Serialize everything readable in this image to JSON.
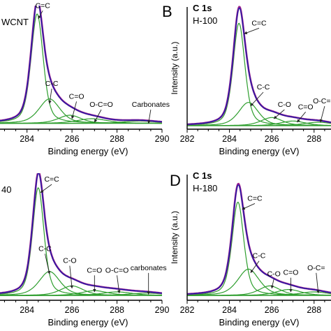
{
  "colors": {
    "fit": "#9b1f8e",
    "envelope": "#1a1aa8",
    "component": "#2e9e2e",
    "raw": "#d23b3b",
    "axis": "#000000",
    "arrow": "#222222"
  },
  "chart_data": [
    {
      "id": "A",
      "type": "line",
      "panel_letter": "",
      "header": "",
      "sample": "WCNT",
      "xlabel": "Binding energy (eV)",
      "ylabel": "",
      "xlim": [
        282.8,
        290
      ],
      "xticks": [
        284,
        286,
        288,
        290
      ],
      "ylim": [
        0,
        1.05
      ],
      "components": [
        {
          "label": "C=C",
          "center": 284.45,
          "height": 0.94,
          "width": 0.32,
          "arrow_from": [
            284.7,
            1.03
          ],
          "arrow_to": [
            284.5,
            0.95
          ]
        },
        {
          "label": "C-C",
          "center": 285.0,
          "height": 0.21,
          "width": 0.55,
          "arrow_from": [
            285.1,
            0.36
          ],
          "arrow_to": [
            285.0,
            0.22
          ]
        },
        {
          "label": "C=O",
          "center": 285.9,
          "height": 0.07,
          "width": 0.6,
          "arrow_from": [
            286.2,
            0.25
          ],
          "arrow_to": [
            286.0,
            0.09
          ]
        },
        {
          "label": "O-C=O",
          "center": 286.9,
          "height": 0.04,
          "width": 0.8,
          "arrow_from": [
            287.3,
            0.18
          ],
          "arrow_to": [
            287.0,
            0.06
          ]
        },
        {
          "label": "Carbonates",
          "center": 289.0,
          "height": 0.02,
          "width": 0.9,
          "arrow_from": [
            289.5,
            0.18
          ],
          "arrow_to": [
            289.4,
            0.05
          ]
        }
      ],
      "baseline": 0.05
    },
    {
      "id": "B",
      "type": "line",
      "panel_letter": "B",
      "header": "C 1s",
      "sample": "H-100",
      "xlabel": "Binding energy (eV)",
      "ylabel": "Intensity (a.u.)",
      "xlim": [
        282,
        288.8
      ],
      "xticks": [
        282,
        284,
        286,
        288
      ],
      "ylim": [
        0,
        1.05
      ],
      "components": [
        {
          "label": "C=C",
          "center": 284.45,
          "height": 0.88,
          "width": 0.33,
          "arrow_from": [
            285.4,
            0.88
          ],
          "arrow_to": [
            284.7,
            0.82
          ]
        },
        {
          "label": "C-C",
          "center": 284.9,
          "height": 0.2,
          "width": 0.55,
          "arrow_from": [
            285.6,
            0.33
          ],
          "arrow_to": [
            285.0,
            0.2
          ]
        },
        {
          "label": "C-O",
          "center": 286.0,
          "height": 0.07,
          "width": 0.6,
          "arrow_from": [
            286.6,
            0.18
          ],
          "arrow_to": [
            286.1,
            0.09
          ]
        },
        {
          "label": "C=O",
          "center": 287.0,
          "height": 0.04,
          "width": 0.7,
          "arrow_from": [
            287.6,
            0.16
          ],
          "arrow_to": [
            287.2,
            0.06
          ]
        },
        {
          "label": "O-C=O",
          "center": 288.2,
          "height": 0.03,
          "width": 0.8,
          "arrow_from": [
            288.5,
            0.21
          ],
          "arrow_to": [
            288.3,
            0.06
          ]
        }
      ],
      "baseline": 0.03
    },
    {
      "id": "C",
      "type": "line",
      "panel_letter": "",
      "header": "",
      "sample": "40",
      "xlabel": "Binding energy (eV)",
      "ylabel": "",
      "xlim": [
        282.8,
        290
      ],
      "xticks": [
        284,
        286,
        288,
        290
      ],
      "ylim": [
        0,
        1.05
      ],
      "components": [
        {
          "label": "C=C",
          "center": 284.5,
          "height": 0.9,
          "width": 0.3,
          "arrow_from": [
            285.1,
            0.98
          ],
          "arrow_to": [
            284.6,
            0.9
          ]
        },
        {
          "label": "C-C",
          "center": 285.0,
          "height": 0.2,
          "width": 0.55,
          "arrow_from": [
            284.8,
            0.4
          ],
          "arrow_to": [
            285.0,
            0.22
          ]
        },
        {
          "label": "C-O",
          "center": 286.0,
          "height": 0.08,
          "width": 0.6,
          "arrow_from": [
            285.9,
            0.3
          ],
          "arrow_to": [
            286.0,
            0.1
          ]
        },
        {
          "label": "C=O",
          "center": 287.0,
          "height": 0.04,
          "width": 0.7,
          "arrow_from": [
            287.0,
            0.22
          ],
          "arrow_to": [
            287.0,
            0.07
          ]
        },
        {
          "label": "O-C=O",
          "center": 288.0,
          "height": 0.03,
          "width": 0.8,
          "arrow_from": [
            288.0,
            0.22
          ],
          "arrow_to": [
            288.1,
            0.06
          ]
        },
        {
          "label": "carbonates",
          "center": 289.3,
          "height": 0.02,
          "width": 0.9,
          "arrow_from": [
            289.4,
            0.24
          ],
          "arrow_to": [
            289.4,
            0.05
          ]
        }
      ],
      "baseline": 0.04
    },
    {
      "id": "D",
      "type": "line",
      "panel_letter": "D",
      "header": "C 1s",
      "sample": "H-180",
      "xlabel": "Binding energy (eV)",
      "ylabel": "Intensity (a.u.)",
      "xlim": [
        282,
        288.8
      ],
      "xticks": [
        282,
        284,
        286,
        288
      ],
      "ylim": [
        0,
        1.05
      ],
      "components": [
        {
          "label": "C=C",
          "center": 284.4,
          "height": 0.78,
          "width": 0.33,
          "arrow_from": [
            285.2,
            0.82
          ],
          "arrow_to": [
            284.6,
            0.76
          ]
        },
        {
          "label": "C-C",
          "center": 284.9,
          "height": 0.22,
          "width": 0.6,
          "arrow_from": [
            285.4,
            0.34
          ],
          "arrow_to": [
            285.0,
            0.23
          ]
        },
        {
          "label": "C-O",
          "center": 285.9,
          "height": 0.08,
          "width": 0.6,
          "arrow_from": [
            286.1,
            0.19
          ],
          "arrow_to": [
            286.0,
            0.1
          ]
        },
        {
          "label": "C=O",
          "center": 286.8,
          "height": 0.05,
          "width": 0.7,
          "arrow_from": [
            286.9,
            0.2
          ],
          "arrow_to": [
            286.9,
            0.07
          ]
        },
        {
          "label": "O-C=",
          "center": 288.0,
          "height": 0.03,
          "width": 0.8,
          "arrow_from": [
            288.1,
            0.24
          ],
          "arrow_to": [
            288.2,
            0.06
          ]
        }
      ],
      "baseline": 0.04
    }
  ]
}
